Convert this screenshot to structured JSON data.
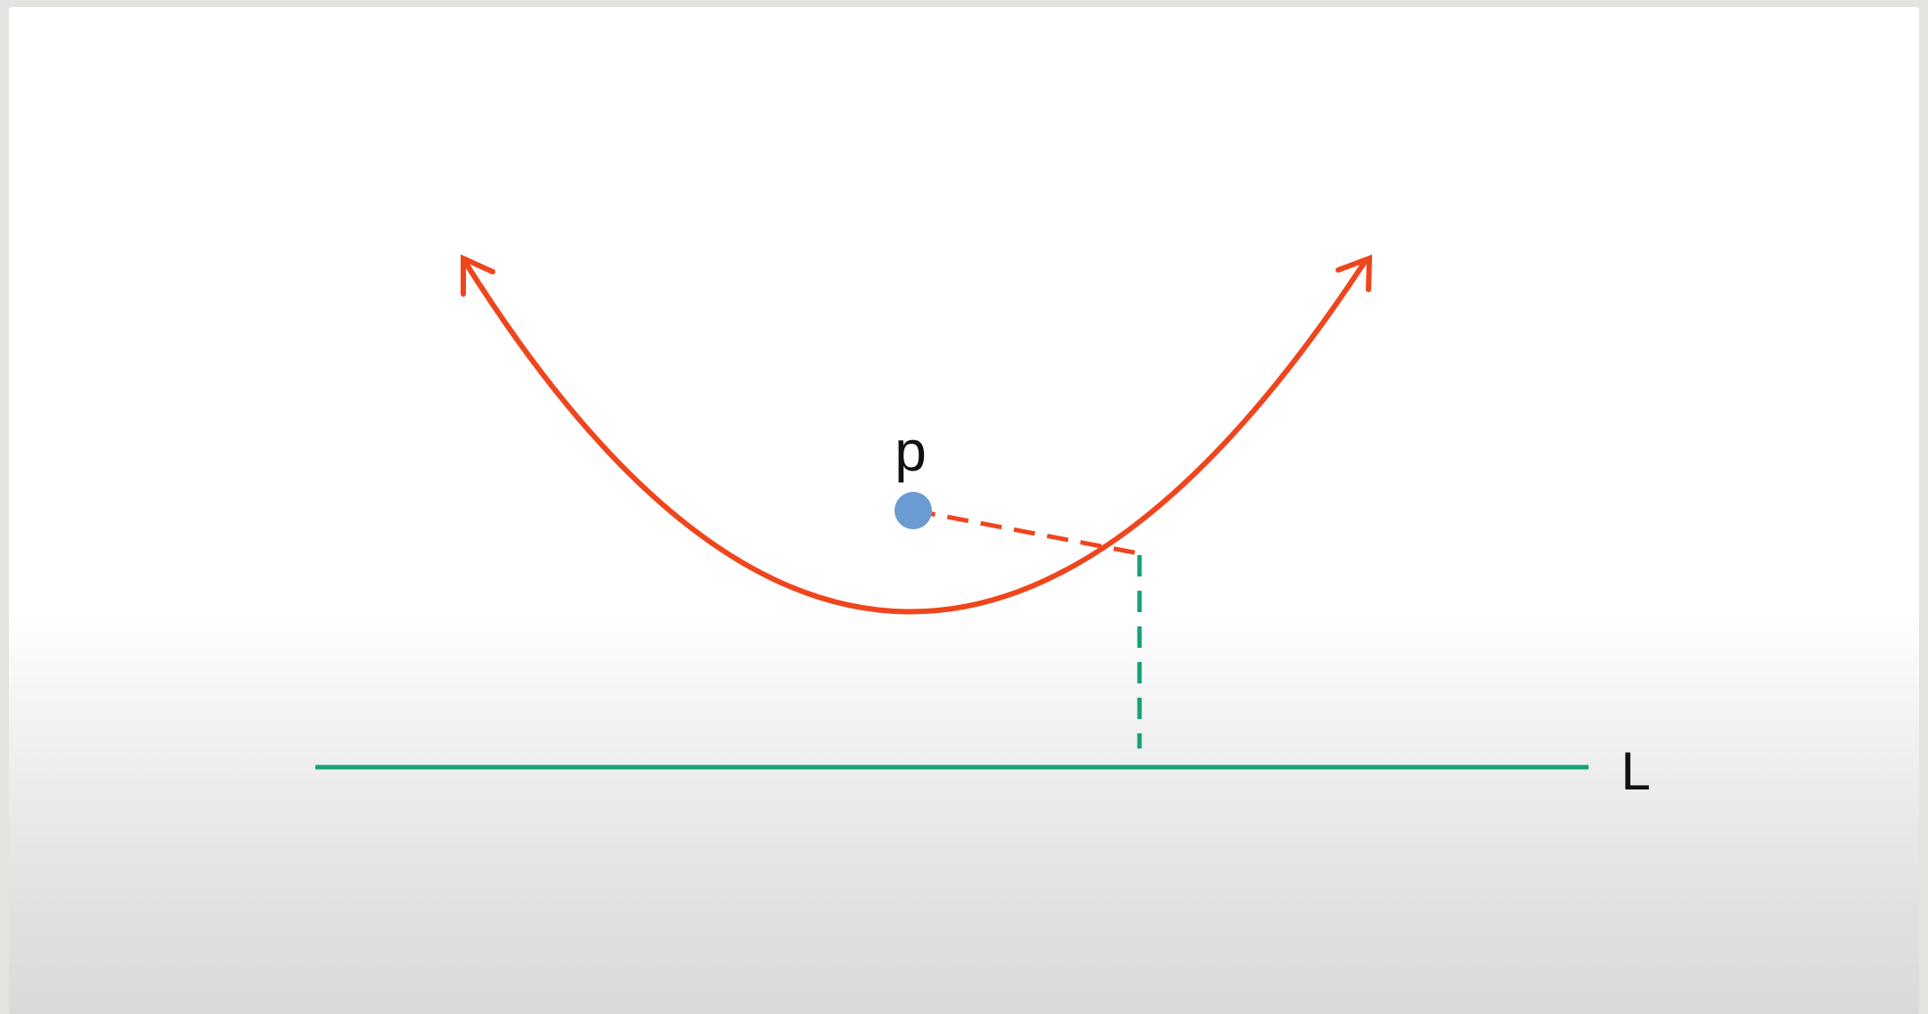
{
  "diagram": {
    "labels": {
      "point": "p",
      "line": "L"
    },
    "colors": {
      "parabola": "#f0451c",
      "focus_point": "#6a9bd3",
      "directrix": "#17a07a",
      "distance_to_focus": "#f0451c",
      "distance_to_line": "#17a07a",
      "background": "#ffffff"
    }
  }
}
